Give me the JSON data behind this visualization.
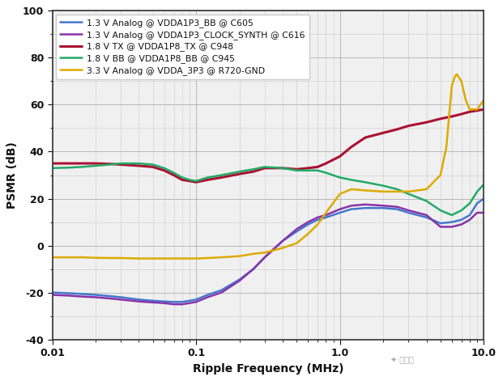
{
  "xlabel": "Ripple Frequency (MHz)",
  "ylabel": "PSMR (dB)",
  "xlim": [
    0.01,
    10.0
  ],
  "ylim": [
    -40,
    100
  ],
  "yticks": [
    -40,
    -20,
    0,
    20,
    40,
    60,
    80,
    100
  ],
  "plot_bg": "#f0f0f0",
  "fig_bg": "#ffffff",
  "series": [
    {
      "label": "1.3 V Analog @ VDDA1P3_BB @ C605",
      "color": "#4477cc",
      "linewidth": 1.8,
      "x": [
        0.01,
        0.013,
        0.016,
        0.02,
        0.025,
        0.03,
        0.04,
        0.05,
        0.06,
        0.07,
        0.08,
        0.09,
        0.1,
        0.12,
        0.15,
        0.2,
        0.25,
        0.3,
        0.4,
        0.5,
        0.6,
        0.7,
        0.8,
        1.0,
        1.2,
        1.5,
        2.0,
        2.5,
        3.0,
        4.0,
        5.0,
        6.0,
        7.0,
        8.0,
        9.0,
        10.0
      ],
      "y": [
        -20,
        -20.3,
        -20.6,
        -21,
        -21.5,
        -22,
        -23,
        -23.5,
        -23.8,
        -24,
        -24,
        -23.5,
        -23,
        -21,
        -19,
        -14.5,
        -10,
        -5,
        2,
        6,
        9,
        11,
        12,
        14,
        15.5,
        16,
        16,
        15.5,
        14,
        12,
        9.5,
        10,
        11,
        13,
        18,
        20
      ]
    },
    {
      "label": "1.3 V Analog @ VDDA1P3_CLOCK_SYNTH @ C616",
      "color": "#8833aa",
      "linewidth": 1.8,
      "x": [
        0.01,
        0.013,
        0.016,
        0.02,
        0.025,
        0.03,
        0.04,
        0.05,
        0.06,
        0.07,
        0.08,
        0.09,
        0.1,
        0.12,
        0.15,
        0.2,
        0.25,
        0.3,
        0.4,
        0.5,
        0.6,
        0.7,
        0.8,
        1.0,
        1.2,
        1.5,
        2.0,
        2.5,
        3.0,
        4.0,
        5.0,
        6.0,
        7.0,
        8.0,
        9.0,
        10.0
      ],
      "y": [
        -21,
        -21.3,
        -21.7,
        -22,
        -22.5,
        -23,
        -23.8,
        -24.2,
        -24.5,
        -25,
        -25,
        -24.5,
        -24,
        -22,
        -20,
        -15,
        -10,
        -5,
        2,
        7,
        10,
        12,
        13,
        15.5,
        17,
        17.5,
        17,
        16.5,
        15,
        13,
        8,
        8,
        9,
        11,
        14,
        14
      ]
    },
    {
      "label": "1.8 V TX @ VDDA1P8_TX @ C948",
      "color": "#aa1133",
      "linewidth": 2.2,
      "x": [
        0.01,
        0.013,
        0.016,
        0.02,
        0.025,
        0.03,
        0.04,
        0.05,
        0.06,
        0.07,
        0.08,
        0.09,
        0.1,
        0.12,
        0.15,
        0.2,
        0.25,
        0.3,
        0.4,
        0.5,
        0.6,
        0.7,
        0.8,
        1.0,
        1.2,
        1.5,
        2.0,
        2.5,
        3.0,
        4.0,
        5.0,
        6.0,
        7.0,
        8.0,
        9.0,
        10.0
      ],
      "y": [
        35,
        35,
        35,
        35,
        34.8,
        34.5,
        34,
        33.5,
        32,
        30,
        28,
        27.5,
        27,
        28,
        29,
        30.5,
        31.5,
        33,
        33,
        32.5,
        33,
        33.5,
        35,
        38,
        42,
        46,
        48,
        49.5,
        51,
        52.5,
        54,
        55,
        56,
        57,
        57.5,
        58
      ]
    },
    {
      "label": "1.8 V BB @ VDDA1P8_BB @ C945",
      "color": "#22aa66",
      "linewidth": 1.8,
      "x": [
        0.01,
        0.013,
        0.016,
        0.02,
        0.025,
        0.03,
        0.04,
        0.05,
        0.06,
        0.07,
        0.08,
        0.09,
        0.1,
        0.12,
        0.15,
        0.2,
        0.25,
        0.3,
        0.4,
        0.5,
        0.6,
        0.7,
        0.8,
        1.0,
        1.2,
        1.5,
        2.0,
        2.5,
        3.0,
        4.0,
        5.0,
        6.0,
        7.0,
        8.0,
        9.0,
        10.0
      ],
      "y": [
        33,
        33.2,
        33.5,
        34,
        34.5,
        35,
        35,
        34.5,
        33,
        31,
        29,
        28,
        27.5,
        29,
        30,
        31.5,
        32.5,
        33.5,
        33,
        32,
        32,
        32,
        31,
        29,
        28,
        27,
        25.5,
        24,
        22,
        19,
        15,
        13,
        15,
        18,
        23,
        26
      ]
    },
    {
      "label": "3.3 V Analog @ VDDA_3P3 @ R720-GND",
      "color": "#ddaa00",
      "linewidth": 1.8,
      "x": [
        0.01,
        0.013,
        0.016,
        0.02,
        0.025,
        0.03,
        0.04,
        0.05,
        0.06,
        0.07,
        0.08,
        0.09,
        0.1,
        0.12,
        0.15,
        0.2,
        0.25,
        0.3,
        0.4,
        0.5,
        0.6,
        0.7,
        0.8,
        1.0,
        1.2,
        1.5,
        2.0,
        2.5,
        3.0,
        4.0,
        5.0,
        5.5,
        6.0,
        6.3,
        6.5,
        7.0,
        7.5,
        8.0,
        8.5,
        9.0,
        9.5,
        10.0
      ],
      "y": [
        -5,
        -5,
        -5,
        -5.2,
        -5.3,
        -5.3,
        -5.5,
        -5.5,
        -5.5,
        -5.5,
        -5.5,
        -5.5,
        -5.5,
        -5.3,
        -5,
        -4.5,
        -3.5,
        -3,
        -1,
        1,
        5,
        9,
        14,
        22,
        24,
        23.5,
        23,
        23,
        23,
        24,
        30,
        42,
        68,
        72,
        73,
        70,
        62,
        58,
        58,
        58,
        60,
        62
      ]
    }
  ]
}
